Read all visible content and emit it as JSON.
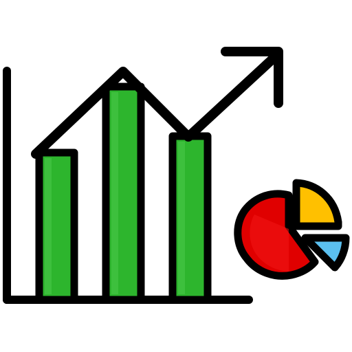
{
  "icon": {
    "name": "growth-analytics-icon",
    "parts": [
      "bar-chart-icon",
      "trend-arrow-icon",
      "pie-chart-icon"
    ]
  },
  "colors": {
    "outline": "#000000",
    "bar_fill": "#2db52d",
    "bar_highlight": "#48c848",
    "pie_red": "#e00000",
    "pie_red_highlight": "#f21616",
    "pie_yellow": "#ffc000",
    "pie_blue": "#5bc0f0",
    "background": "#ffffff"
  },
  "chart_data": {
    "type": "bar",
    "categories": [
      "",
      "",
      ""
    ],
    "values": [
      52,
      76,
      58
    ],
    "ylim": [
      0,
      100
    ],
    "grid": false
  }
}
